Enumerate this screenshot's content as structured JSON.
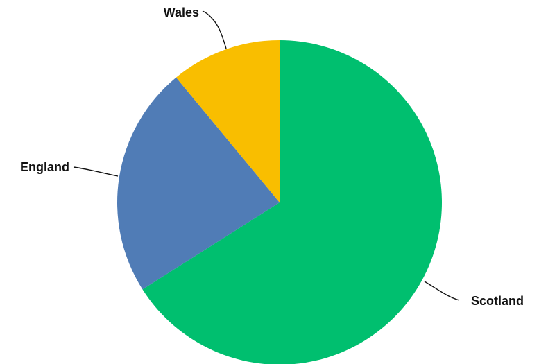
{
  "chart_data": {
    "type": "pie",
    "title": "",
    "start_angle_deg": 0,
    "direction": "clockwise",
    "slices": [
      {
        "label": "Scotland",
        "value": 66,
        "color": "#00BF6F"
      },
      {
        "label": "England",
        "value": 23,
        "color": "#507CB6"
      },
      {
        "label": "Wales",
        "value": 11,
        "color": "#F9BE00"
      }
    ],
    "legend": "none",
    "labels": "outside-with-leader-lines"
  }
}
